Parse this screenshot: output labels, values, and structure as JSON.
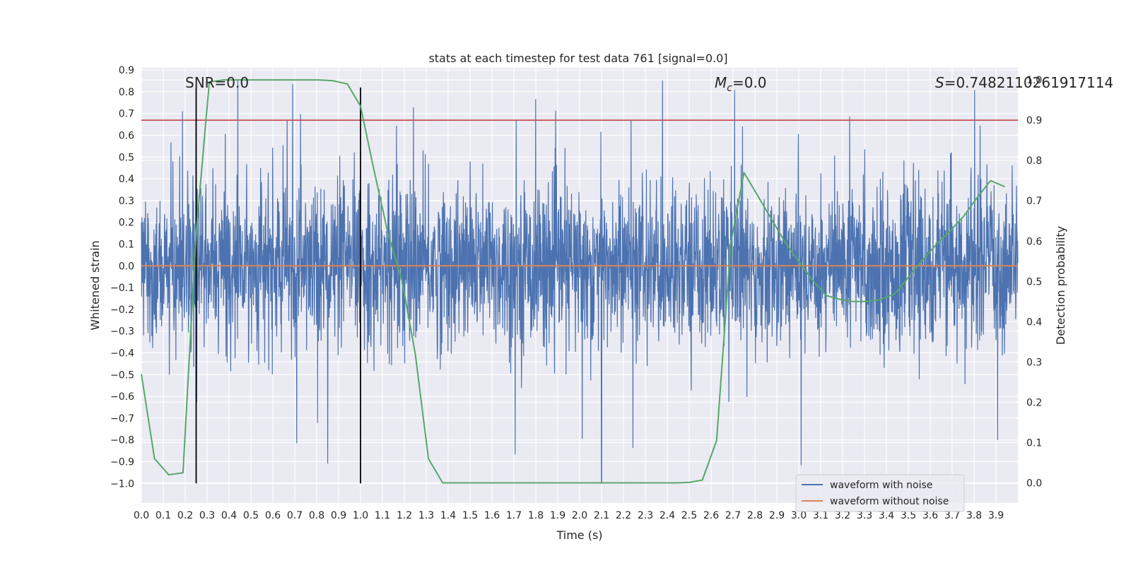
{
  "chart_data": {
    "type": "line",
    "title": "stats at each timestep for test data 761 [signal=0.0]",
    "xlabel": "Time (s)",
    "ylabel_left": "Whitened strain",
    "ylabel_right": "Detection probability",
    "xlim": [
      0.0,
      4.0
    ],
    "ylim_left": [
      -1.09,
      0.91
    ],
    "ylim_right": [
      -0.05,
      1.03
    ],
    "x_ticks": [
      "0.0",
      "0.1",
      "0.2",
      "0.3",
      "0.4",
      "0.5",
      "0.6",
      "0.7",
      "0.8",
      "0.9",
      "1.0",
      "1.1",
      "1.2",
      "1.3",
      "1.4",
      "1.5",
      "1.6",
      "1.7",
      "1.8",
      "1.9",
      "2.0",
      "2.1",
      "2.2",
      "2.3",
      "2.4",
      "2.5",
      "2.6",
      "2.7",
      "2.8",
      "2.9",
      "3.0",
      "3.1",
      "3.2",
      "3.3",
      "3.4",
      "3.5",
      "3.6",
      "3.7",
      "3.8",
      "3.9"
    ],
    "y_ticks_left": [
      "0.9",
      "0.8",
      "0.7",
      "0.6",
      "0.5",
      "0.4",
      "0.3",
      "0.2",
      "0.1",
      "0.0",
      "−0.1",
      "−0.2",
      "−0.3",
      "−0.4",
      "−0.5",
      "−0.6",
      "−0.7",
      "−0.8",
      "−0.9",
      "−1.0"
    ],
    "y_ticks_right": [
      "1.0",
      "0.9",
      "0.8",
      "0.7",
      "0.6",
      "0.5",
      "0.4",
      "0.3",
      "0.2",
      "0.1",
      "0.0"
    ],
    "grid": true,
    "legend_position": "bottom-right",
    "series": [
      {
        "name": "waveform with noise",
        "color": "#4c72b0",
        "kind": "noise",
        "typical_amplitude": 0.3,
        "peak_amplitude": 1.0
      },
      {
        "name": "waveform without noise",
        "color": "#dd8452",
        "x": [
          0.0,
          4.0
        ],
        "y": [
          0.0,
          0.0
        ]
      },
      {
        "color": "#55a868",
        "axis": "right",
        "x": [
          0.0,
          0.06,
          0.125,
          0.19,
          0.25,
          0.31,
          0.375,
          0.44,
          0.5,
          0.56,
          0.625,
          0.69,
          0.75,
          0.81,
          0.875,
          0.94,
          1.0,
          1.06,
          1.125,
          1.19,
          1.25,
          1.31,
          1.375,
          1.44,
          1.5,
          1.56,
          1.625,
          1.69,
          1.75,
          1.81,
          1.875,
          1.94,
          2.0,
          2.06,
          2.125,
          2.19,
          2.25,
          2.31,
          2.375,
          2.44,
          2.5,
          2.56,
          2.625,
          2.69,
          2.75,
          2.81,
          2.875,
          2.94,
          3.0,
          3.06,
          3.125,
          3.19,
          3.25,
          3.31,
          3.375,
          3.44,
          3.5,
          3.56,
          3.625,
          3.69,
          3.75,
          3.81,
          3.875,
          3.94
        ],
        "y": [
          0.27,
          0.06,
          0.02,
          0.025,
          0.62,
          0.995,
          1.0,
          1.0,
          1.0,
          1.0,
          1.0,
          1.0,
          1.0,
          1.0,
          0.998,
          0.99,
          0.935,
          0.78,
          0.62,
          0.5,
          0.32,
          0.06,
          0.0,
          0.0,
          0.0,
          0.0,
          0.0,
          0.0,
          0.0,
          0.0,
          0.0,
          0.0,
          0.0,
          0.0,
          0.0,
          0.0,
          0.0,
          0.0,
          0.0,
          0.0,
          0.001,
          0.007,
          0.105,
          0.595,
          0.77,
          0.715,
          0.655,
          0.595,
          0.55,
          0.505,
          0.465,
          0.455,
          0.45,
          0.45,
          0.455,
          0.47,
          0.51,
          0.55,
          0.59,
          0.625,
          0.66,
          0.705,
          0.75,
          0.735
        ]
      }
    ],
    "hlines": [
      {
        "axis": "right",
        "y": 0.9,
        "color": "#c44e52"
      }
    ],
    "vlines": [
      {
        "x": 0.25,
        "y_from": -1.0,
        "y_to": 0.82,
        "color": "#000000"
      },
      {
        "x": 1.0,
        "y_from": -1.0,
        "y_to": 0.82,
        "color": "#000000"
      }
    ],
    "annotations": {
      "snr_text": "SNR=0.0",
      "mc_symbol": "M",
      "mc_sub": "c",
      "mc_value": "=0.0",
      "s_symbol": "S",
      "s_value": "=0.7482110261917114"
    }
  }
}
